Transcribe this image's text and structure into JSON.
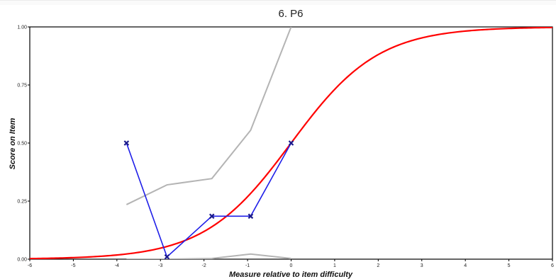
{
  "chart_data": {
    "type": "line",
    "title": "6. P6",
    "xlabel": "Measure relative to item difficulty",
    "ylabel": "Score on Item",
    "xlim": [
      -6,
      6
    ],
    "ylim": [
      0,
      1
    ],
    "x_ticks": [
      "-6",
      "-5",
      "-4",
      "-3",
      "-2",
      "-1",
      "0",
      "1",
      "2",
      "3",
      "4",
      "5",
      "6"
    ],
    "y_ticks": [
      "0.00",
      "0.25",
      "0.50",
      "0.75",
      "1.00"
    ],
    "grid": false,
    "legend": "none",
    "series": [
      {
        "role": "expected-score-curve",
        "color": "#ff0000",
        "function": "logistic",
        "points": [
          [
            -6,
            0.0025
          ],
          [
            -5,
            0.0067
          ],
          [
            -4,
            0.018
          ],
          [
            -3,
            0.047
          ],
          [
            -2,
            0.119
          ],
          [
            -1,
            0.269
          ],
          [
            0,
            0.5
          ],
          [
            1,
            0.731
          ],
          [
            2,
            0.881
          ],
          [
            3,
            0.953
          ],
          [
            4,
            0.982
          ],
          [
            5,
            0.993
          ],
          [
            6,
            0.9975
          ]
        ]
      },
      {
        "role": "observed-scores",
        "color": "#1f1fe8",
        "marker": "x",
        "points": [
          [
            -3.78,
            0.5
          ],
          [
            -2.85,
            0.01
          ],
          [
            -1.82,
            0.185
          ],
          [
            -0.93,
            0.185
          ],
          [
            0.0,
            0.5
          ]
        ]
      },
      {
        "role": "upper-confidence-band",
        "color": "#b4b4b4",
        "points": [
          [
            -3.78,
            0.235
          ],
          [
            -2.85,
            0.32
          ],
          [
            -1.82,
            0.347
          ],
          [
            -0.93,
            0.555
          ],
          [
            0.0,
            1.0
          ]
        ]
      },
      {
        "role": "lower-confidence-band",
        "color": "#b4b4b4",
        "points": [
          [
            -3.78,
            0.0
          ],
          [
            -2.85,
            0.0
          ],
          [
            -1.82,
            0.003
          ],
          [
            -0.93,
            0.022
          ],
          [
            0.0,
            0.003
          ]
        ]
      }
    ]
  }
}
